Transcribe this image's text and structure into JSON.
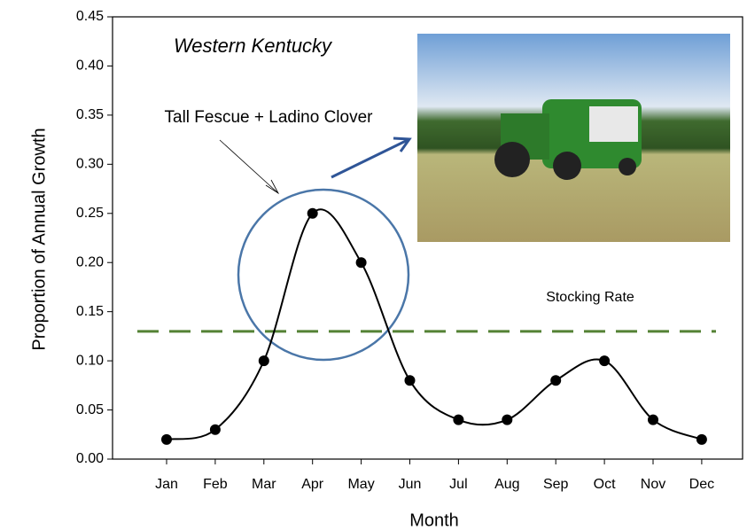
{
  "chart_data": {
    "type": "line",
    "title": "Western Kentucky",
    "series_label": "Tall Fescue + Ladino Clover",
    "categories": [
      "Jan",
      "Feb",
      "Mar",
      "Apr",
      "May",
      "Jun",
      "Jul",
      "Aug",
      "Sep",
      "Oct",
      "Nov",
      "Dec"
    ],
    "values": [
      0.02,
      0.03,
      0.1,
      0.25,
      0.2,
      0.08,
      0.04,
      0.04,
      0.08,
      0.1,
      0.04,
      0.02
    ],
    "color": "#000000",
    "xlabel": "Month",
    "ylabel": "Proportion of Annual Growth",
    "ylim": [
      0,
      0.45
    ],
    "yticks": [
      {
        "value": 0,
        "label": "0.00"
      },
      {
        "value": 0.05,
        "label": "0.05"
      },
      {
        "value": 0.1,
        "label": "0.10"
      },
      {
        "value": 0.15,
        "label": "0.15"
      },
      {
        "value": 0.2,
        "label": "0.20"
      },
      {
        "value": 0.25,
        "label": "0.25"
      },
      {
        "value": 0.3,
        "label": "0.30"
      },
      {
        "value": 0.35,
        "label": "0.35"
      },
      {
        "value": 0.4,
        "label": "0.40"
      },
      {
        "value": 0.45,
        "label": "0.45"
      }
    ],
    "reference_line": {
      "label": "Stocking Rate",
      "value": 0.13,
      "color": "#548235"
    }
  }
}
